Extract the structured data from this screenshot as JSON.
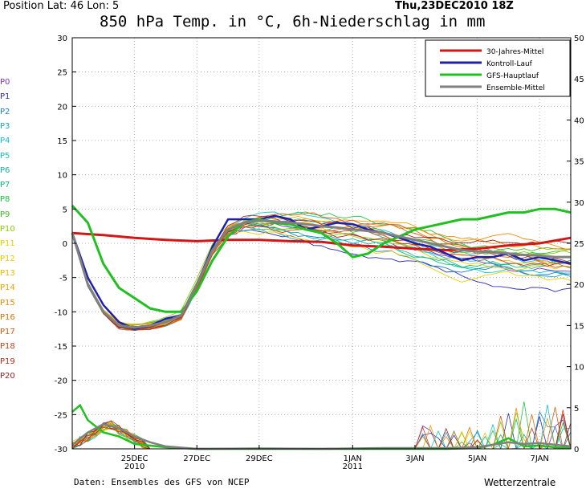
{
  "header": {
    "position": "Position   Lat: 46 Lon: 5",
    "datetime": "Thu,23DEC2010 18Z",
    "title": "850 hPa Temp. in °C, 6h-Niederschlag in mm"
  },
  "footer": {
    "source": "Daten: Ensembles des GFS von NCEP",
    "brand": "Wetterzentrale"
  },
  "member_labels": [
    {
      "label": "P0",
      "color": "#7b2fbe"
    },
    {
      "label": "P1",
      "color": "#2a2ab8"
    },
    {
      "label": "P2",
      "color": "#1e7fd0"
    },
    {
      "label": "P3",
      "color": "#14a6c8"
    },
    {
      "label": "P4",
      "color": "#10bcd6"
    },
    {
      "label": "P5",
      "color": "#10c8c0"
    },
    {
      "label": "P6",
      "color": "#10b89c"
    },
    {
      "label": "P7",
      "color": "#10c070"
    },
    {
      "label": "P8",
      "color": "#22c040"
    },
    {
      "label": "P9",
      "color": "#3cc020"
    },
    {
      "label": "P10",
      "color": "#8ad000"
    },
    {
      "label": "P11",
      "color": "#e8d000"
    },
    {
      "label": "P12",
      "color": "#f0c800"
    },
    {
      "label": "P13",
      "color": "#f0b800"
    },
    {
      "label": "P14",
      "color": "#f0a000"
    },
    {
      "label": "P15",
      "color": "#f08800"
    },
    {
      "label": "P16",
      "color": "#e07000"
    },
    {
      "label": "P17",
      "color": "#d85a10"
    },
    {
      "label": "P18",
      "color": "#c84020"
    },
    {
      "label": "P19",
      "color": "#b03020"
    },
    {
      "label": "P20",
      "color": "#982020"
    }
  ],
  "chart_data": {
    "type": "line",
    "title": "850 hPa Temp. in °C, 6h-Niederschlag in mm",
    "y_left_range": [
      -30,
      30
    ],
    "y_right_range": [
      0,
      50
    ],
    "y_left_ticks": [
      30,
      25,
      20,
      15,
      10,
      5,
      0,
      -5,
      -10,
      -15,
      -20,
      -25,
      -30
    ],
    "y_right_ticks": [
      50,
      45,
      40,
      35,
      30,
      25,
      20,
      15,
      10,
      5,
      0
    ],
    "x_day_range": [
      0,
      16
    ],
    "x_ticks": [
      {
        "day": 2,
        "label": "25DEC",
        "sub": "2010"
      },
      {
        "day": 4,
        "label": "27DEC",
        "sub": ""
      },
      {
        "day": 6,
        "label": "29DEC",
        "sub": ""
      },
      {
        "day": 9,
        "label": "1JAN",
        "sub": "2011"
      },
      {
        "day": 11,
        "label": "3JAN",
        "sub": ""
      },
      {
        "day": 13,
        "label": "5JAN",
        "sub": ""
      },
      {
        "day": 15,
        "label": "7JAN",
        "sub": ""
      }
    ],
    "grid": true,
    "legend_position": "top-right",
    "series": [
      {
        "name": "30-Jahres-Mittel",
        "color": "#d01818",
        "width": 3,
        "x": [
          0,
          1,
          2,
          3,
          4,
          5,
          6,
          7,
          8,
          9,
          10,
          11,
          12,
          13,
          14,
          15,
          16
        ],
        "y": [
          1.5,
          1.2,
          0.8,
          0.5,
          0.3,
          0.5,
          0.5,
          0.3,
          0.2,
          -0.3,
          -0.5,
          -0.8,
          -1.0,
          -0.8,
          -0.3,
          0.0,
          0.8
        ]
      },
      {
        "name": "Kontroll-Lauf",
        "color": "#2020b0",
        "width": 2.5,
        "x": [
          0,
          0.5,
          1,
          1.5,
          2,
          2.5,
          3,
          3.5,
          4,
          4.5,
          5,
          5.5,
          6,
          6.5,
          7,
          7.5,
          8,
          8.5,
          9,
          9.5,
          10,
          10.5,
          11,
          11.5,
          12,
          12.5,
          13,
          13.5,
          14,
          14.5,
          15,
          15.5,
          16
        ],
        "y": [
          1.5,
          -5,
          -9,
          -11.5,
          -12.5,
          -12,
          -11,
          -10.5,
          -6,
          -0.5,
          3.5,
          3.5,
          3.5,
          4,
          3.5,
          2,
          2.5,
          3,
          2.8,
          2,
          1.5,
          0.8,
          0,
          -0.5,
          -1.5,
          -2.5,
          -2,
          -2,
          -1.5,
          -2.5,
          -2,
          -2.5,
          -3
        ]
      },
      {
        "name": "GFS-Hauptlauf",
        "color": "#20c020",
        "width": 3,
        "x": [
          0,
          0.5,
          1,
          1.5,
          2,
          2.5,
          3,
          3.5,
          4,
          4.5,
          5,
          5.5,
          6,
          6.5,
          7,
          7.5,
          8,
          8.5,
          9,
          9.5,
          10,
          10.5,
          11,
          11.5,
          12,
          12.5,
          13,
          13.5,
          14,
          14.5,
          15,
          15.5,
          16
        ],
        "y": [
          5.5,
          3,
          -3,
          -6.5,
          -8,
          -9.5,
          -10,
          -10,
          -7,
          -2.5,
          1,
          3,
          3.5,
          3,
          2.8,
          2,
          1.5,
          0,
          -2,
          -1.5,
          0,
          1,
          2,
          2.5,
          3,
          3.5,
          3.5,
          4,
          4.5,
          4.5,
          5,
          5,
          4.5
        ]
      },
      {
        "name": "Ensemble-Mittel",
        "color": "#808080",
        "width": 3,
        "x": [
          0,
          0.5,
          1,
          1.5,
          2,
          2.5,
          3,
          3.5,
          4,
          4.5,
          5,
          5.5,
          6,
          6.5,
          7,
          7.5,
          8,
          8.5,
          9,
          9.5,
          10,
          10.5,
          11,
          11.5,
          12,
          12.5,
          13,
          13.5,
          14,
          14.5,
          15,
          15.5,
          16
        ],
        "y": [
          1.5,
          -6,
          -10,
          -12,
          -12.3,
          -12,
          -11.5,
          -10.5,
          -6,
          -1,
          2,
          3,
          3.3,
          3.2,
          3,
          2.8,
          2.5,
          2.3,
          2,
          1.8,
          1.5,
          1,
          0.5,
          0,
          -0.5,
          -1,
          -1.2,
          -1.3,
          -1.5,
          -1.7,
          -1.8,
          -2,
          -2
        ]
      }
    ],
    "precip_series": [
      {
        "name": "GFS-Hauptlauf",
        "color": "#20c020",
        "x": [
          0,
          0.25,
          0.5,
          1,
          1.5,
          2,
          3,
          4,
          6,
          8,
          10,
          12,
          13,
          13.5,
          14,
          14.5,
          15,
          15.5,
          16
        ],
        "y": [
          4.5,
          5.3,
          3.5,
          2,
          1.5,
          0.6,
          0.2,
          0,
          0,
          0,
          0,
          0,
          0.1,
          0.5,
          1.3,
          0.3,
          0.4,
          0.2,
          0.1
        ]
      },
      {
        "name": "Ensemble-Mittel",
        "color": "#808080",
        "x": [
          0,
          0.5,
          1,
          1.5,
          2,
          2.5,
          3,
          4,
          6,
          8,
          10,
          12,
          13,
          13.5,
          14,
          14.5,
          15,
          15.5,
          16
        ],
        "y": [
          0.5,
          2,
          3,
          2.5,
          1.5,
          0.8,
          0.3,
          0,
          0.05,
          0,
          0.1,
          0.1,
          0.2,
          0.5,
          0.8,
          0.6,
          0.7,
          0.5,
          0.3
        ]
      }
    ]
  }
}
